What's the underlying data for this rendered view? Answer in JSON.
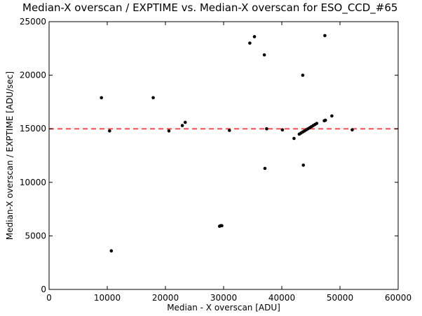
{
  "chart_data": {
    "type": "scatter",
    "title": "Median-X overscan / EXPTIME vs. Median-X overscan for ESO_CCD_#65",
    "xlabel": "Median - X overscan [ADU]",
    "ylabel": "Median-X overscan / EXPTIME [ADU/sec]",
    "xlim": [
      0,
      60000
    ],
    "ylim": [
      0,
      25000
    ],
    "xticks": [
      0,
      10000,
      20000,
      30000,
      40000,
      50000,
      60000
    ],
    "yticks": [
      0,
      5000,
      10000,
      15000,
      20000,
      25000
    ],
    "grid": false,
    "point_color": "#000000",
    "reference_line": {
      "y": 15000,
      "style": "dashed",
      "color": "#ff4d4d"
    },
    "points": [
      [
        9000,
        17900
      ],
      [
        10400,
        14800
      ],
      [
        10700,
        3600
      ],
      [
        17900,
        17900
      ],
      [
        20600,
        14800
      ],
      [
        22900,
        15300
      ],
      [
        23400,
        15600
      ],
      [
        29300,
        5900
      ],
      [
        29500,
        5950
      ],
      [
        29700,
        5950
      ],
      [
        31000,
        14850
      ],
      [
        34500,
        23000
      ],
      [
        35300,
        23600
      ],
      [
        37000,
        21900
      ],
      [
        37100,
        11300
      ],
      [
        37400,
        15000
      ],
      [
        40100,
        14900
      ],
      [
        42100,
        14100
      ],
      [
        43600,
        20000
      ],
      [
        43700,
        11600
      ],
      [
        43000,
        14500
      ],
      [
        43300,
        14600
      ],
      [
        43600,
        14700
      ],
      [
        43900,
        14800
      ],
      [
        44200,
        14900
      ],
      [
        44500,
        15000
      ],
      [
        44800,
        15100
      ],
      [
        45100,
        15200
      ],
      [
        45400,
        15300
      ],
      [
        45700,
        15400
      ],
      [
        46000,
        15500
      ],
      [
        47300,
        15750
      ],
      [
        47500,
        15800
      ],
      [
        47400,
        23700
      ],
      [
        48600,
        16200
      ],
      [
        52100,
        14900
      ]
    ]
  }
}
